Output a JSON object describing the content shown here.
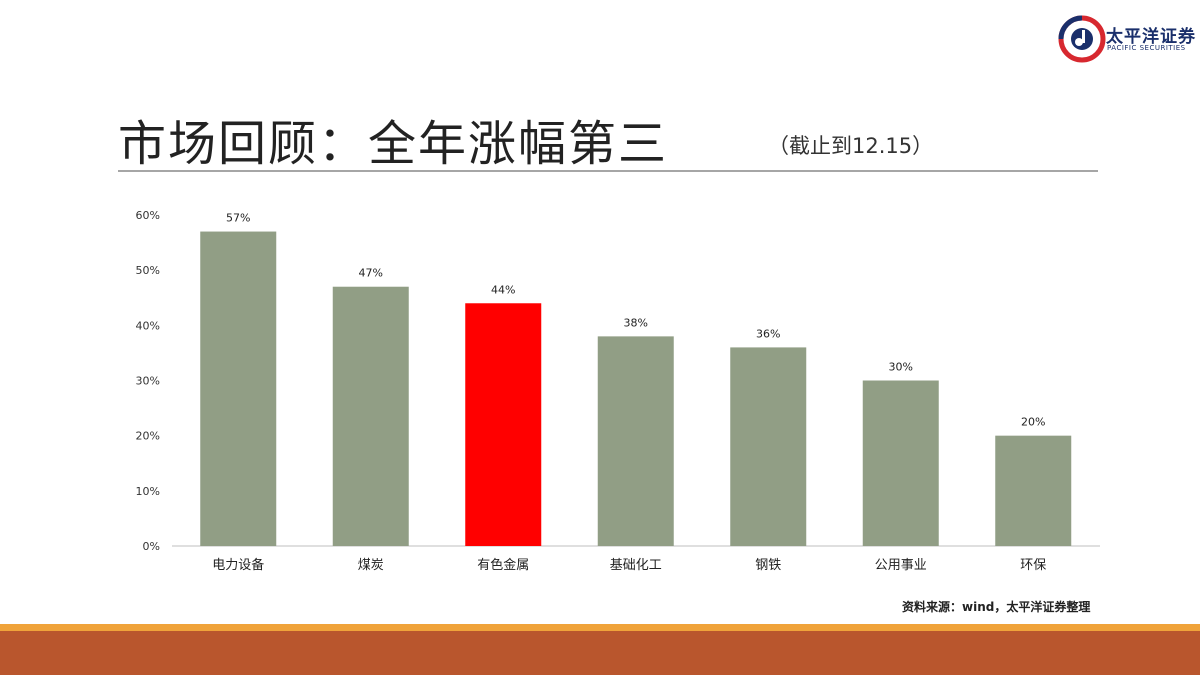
{
  "header": {
    "logo_cn": "太平洋证券",
    "logo_en": "PACIFIC SECURITIES",
    "title": "市场回顾：全年涨幅第三",
    "subtitle": "（截止到12.15）"
  },
  "footer": {
    "source": "资料来源：wind，太平洋证券整理"
  },
  "colors": {
    "bar_default": "#919e85",
    "bar_highlight": "#ff0000",
    "band_orange": "#f0a33a",
    "band_brown": "#b9562d"
  },
  "chart_data": {
    "type": "bar",
    "categories": [
      "电力设备",
      "煤炭",
      "有色金属",
      "基础化工",
      "钢铁",
      "公用事业",
      "环保"
    ],
    "values": [
      57,
      47,
      44,
      38,
      36,
      30,
      20
    ],
    "data_labels": [
      "57%",
      "47%",
      "44%",
      "38%",
      "36%",
      "30%",
      "20%"
    ],
    "highlight_index": 2,
    "ylim": [
      0,
      60
    ],
    "yticks": [
      0,
      10,
      20,
      30,
      40,
      50,
      60
    ],
    "ytick_labels": [
      "0%",
      "10%",
      "20%",
      "30%",
      "40%",
      "50%",
      "60%"
    ],
    "grid": false,
    "legend": "none"
  }
}
